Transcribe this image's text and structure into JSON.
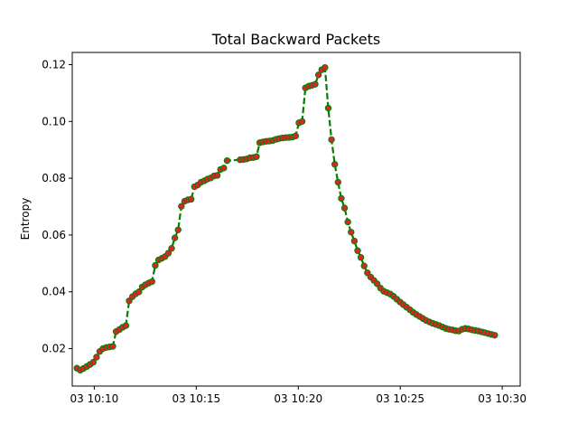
{
  "chart_data": {
    "type": "line",
    "title": "Total Backward Packets",
    "xlabel": "",
    "ylabel": "Entropy",
    "x_unit": "minutes since 10:00 on day 03",
    "xlim": [
      8.92,
      30.88
    ],
    "ylim": [
      0.0068,
      0.1243
    ],
    "x_ticks": [
      {
        "value": 10,
        "label": "03 10:10"
      },
      {
        "value": 15,
        "label": "03 10:15"
      },
      {
        "value": 20,
        "label": "03 10:20"
      },
      {
        "value": 25,
        "label": "03 10:25"
      },
      {
        "value": 30,
        "label": "03 10:30"
      }
    ],
    "y_ticks": [
      {
        "value": 0.02,
        "label": "0.02"
      },
      {
        "value": 0.04,
        "label": "0.04"
      },
      {
        "value": 0.06,
        "label": "0.06"
      },
      {
        "value": 0.08,
        "label": "0.08"
      },
      {
        "value": 0.1,
        "label": "0.10"
      },
      {
        "value": 0.12,
        "label": "0.12"
      }
    ],
    "grid": false,
    "series": [
      {
        "name": "Total Backward Packets",
        "line_color": "#008000",
        "line_style": "dashed",
        "marker_fill": "#d62728",
        "marker_edge": "#008000",
        "x": [
          9.15,
          9.31,
          9.47,
          9.63,
          9.79,
          9.95,
          10.11,
          10.27,
          10.43,
          10.59,
          10.75,
          10.91,
          11.07,
          11.23,
          11.39,
          11.55,
          11.71,
          11.87,
          12.03,
          12.19,
          12.35,
          12.51,
          12.67,
          12.83,
          12.99,
          13.15,
          13.31,
          13.47,
          13.63,
          13.79,
          13.95,
          14.11,
          14.27,
          14.43,
          14.59,
          14.75,
          14.91,
          15.07,
          15.23,
          15.39,
          15.55,
          15.71,
          15.87,
          16.03,
          16.19,
          16.35,
          16.51,
          17.15,
          17.31,
          17.47,
          17.63,
          17.79,
          17.95,
          18.11,
          18.27,
          18.43,
          18.59,
          18.75,
          18.91,
          19.07,
          19.23,
          19.39,
          19.55,
          19.71,
          19.87,
          20.03,
          20.19,
          20.35,
          20.51,
          20.67,
          20.83,
          20.99,
          21.15,
          21.31,
          21.47,
          21.63,
          21.79,
          21.95,
          22.11,
          22.27,
          22.43,
          22.59,
          22.75,
          22.91,
          23.07,
          23.23,
          23.39,
          23.55,
          23.71,
          23.87,
          24.03,
          24.19,
          24.35,
          24.51,
          24.67,
          24.83,
          24.99,
          25.15,
          25.31,
          25.47,
          25.63,
          25.79,
          25.95,
          26.11,
          26.27,
          26.43,
          26.59,
          26.75,
          26.91,
          27.07,
          27.23,
          27.39,
          27.55,
          27.71,
          27.87,
          28.03,
          28.19,
          28.35,
          28.51,
          28.67,
          28.83,
          28.99,
          29.15,
          29.31,
          29.47,
          29.63
        ],
        "y": [
          0.0131,
          0.0124,
          0.013,
          0.0137,
          0.0144,
          0.0152,
          0.017,
          0.019,
          0.02,
          0.0204,
          0.0206,
          0.0208,
          0.026,
          0.0267,
          0.0275,
          0.0281,
          0.0368,
          0.0383,
          0.0393,
          0.04,
          0.0417,
          0.0425,
          0.0431,
          0.0436,
          0.0493,
          0.0512,
          0.0518,
          0.0524,
          0.0536,
          0.0553,
          0.059,
          0.0618,
          0.0701,
          0.0719,
          0.0724,
          0.0726,
          0.077,
          0.0776,
          0.0786,
          0.0791,
          0.0797,
          0.0801,
          0.0808,
          0.081,
          0.0831,
          0.0836,
          0.0862,
          0.0865,
          0.0866,
          0.0868,
          0.0872,
          0.0873,
          0.0876,
          0.0925,
          0.0928,
          0.093,
          0.0931,
          0.0933,
          0.0937,
          0.094,
          0.0942,
          0.0943,
          0.0944,
          0.0945,
          0.0949,
          0.0995,
          0.1,
          0.1118,
          0.1124,
          0.1127,
          0.1131,
          0.1164,
          0.1182,
          0.119,
          0.1047,
          0.0936,
          0.0849,
          0.0786,
          0.0729,
          0.0695,
          0.0646,
          0.061,
          0.0579,
          0.0545,
          0.0521,
          0.0491,
          0.0467,
          0.0452,
          0.044,
          0.0428,
          0.0413,
          0.0402,
          0.0397,
          0.0392,
          0.0384,
          0.0374,
          0.0364,
          0.0355,
          0.0346,
          0.0337,
          0.0328,
          0.032,
          0.0313,
          0.0306,
          0.0299,
          0.0294,
          0.0289,
          0.0285,
          0.0281,
          0.0276,
          0.0271,
          0.0268,
          0.0266,
          0.0263,
          0.0262,
          0.0268,
          0.0271,
          0.0269,
          0.0266,
          0.0264,
          0.0262,
          0.0259,
          0.0256,
          0.0253,
          0.025,
          0.0247
        ]
      }
    ]
  }
}
